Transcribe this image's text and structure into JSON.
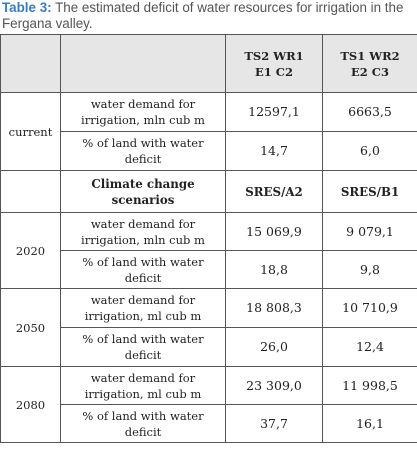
{
  "caption": {
    "label": "Table 3:",
    "text": "The estimated deficit of water resources for irrigation in the Fergana valley."
  },
  "table": {
    "header": {
      "col_a": "TS2 WR1 E1 C2",
      "col_b": "TS1 WR2 E2 C3"
    },
    "current": {
      "label": "current",
      "demand_label": "water demand for irrigation, mln cub m",
      "demand_a": "12597,1",
      "demand_b": "6663,5",
      "deficit_label": "% of land with water deficit",
      "deficit_a": "14,7",
      "deficit_b": "6,0"
    },
    "scenario": {
      "label": "Climate change scenarios",
      "col_a": "SRES/A2",
      "col_b": "SRES/B1"
    },
    "rows": [
      {
        "year": "2020",
        "demand_label": "water demand for irrigation, mln cub m",
        "demand_a": "15 069,9",
        "demand_b": "9 079,1",
        "deficit_label": "% of land with water deficit",
        "deficit_a": "18,8",
        "deficit_b": "9,8"
      },
      {
        "year": "2050",
        "demand_label": "water demand for irrigation, ml cub m",
        "demand_a": "18 808,3",
        "demand_b": "10 710,9",
        "deficit_label": "% of land with water deficit",
        "deficit_a": "26,0",
        "deficit_b": "12,4"
      },
      {
        "year": "2080",
        "demand_label": "water demand for irrigation, ml cub m",
        "demand_a": "23 309,0",
        "demand_b": "11 998,5",
        "deficit_label": "% of land with water deficit",
        "deficit_a": "37,7",
        "deficit_b": "16,1"
      }
    ]
  }
}
